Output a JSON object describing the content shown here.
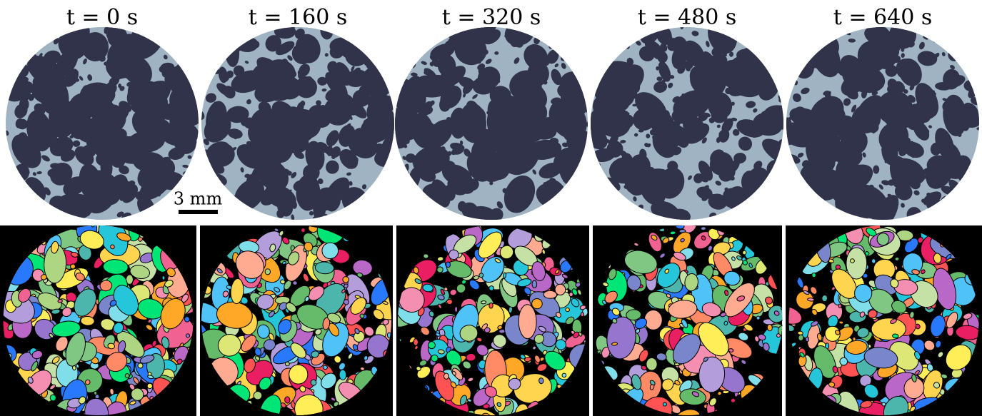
{
  "panels": [
    {
      "label": "t = 0 s"
    },
    {
      "label": "t = 160 s"
    },
    {
      "label": "t = 320 s"
    },
    {
      "label": "t = 480 s"
    },
    {
      "label": "t = 640 s"
    }
  ],
  "scale_bar": {
    "label": "3 mm"
  }
}
